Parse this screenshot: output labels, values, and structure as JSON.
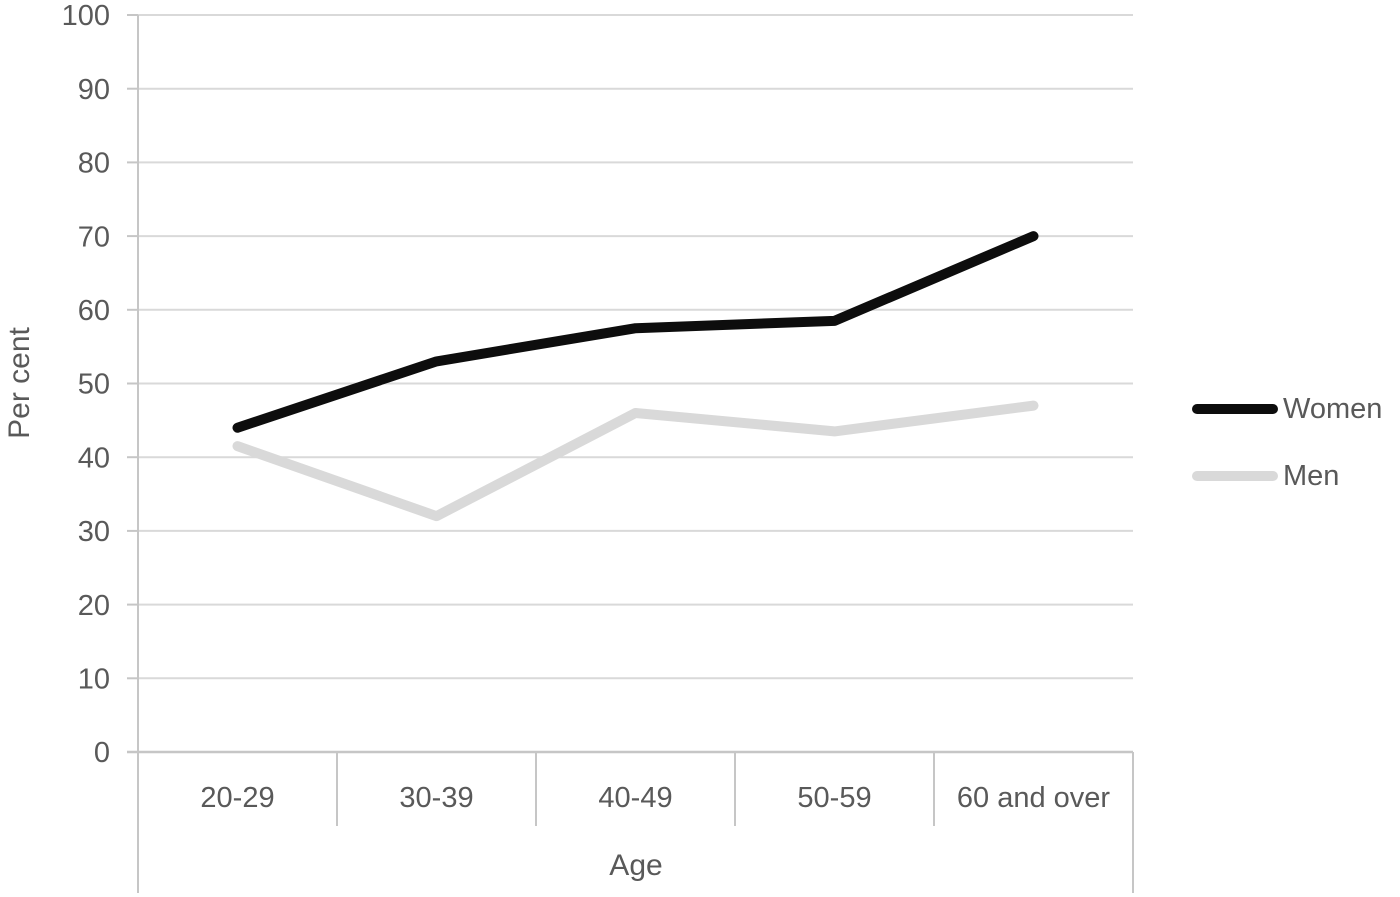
{
  "colors": {
    "background": "#ffffff",
    "text": "#595959",
    "gridline": "#d9d9d9",
    "axis_line": "#c6c6c6",
    "women_line": "#0d0d0d",
    "men_line": "#d9d9d9"
  },
  "chart_data": {
    "type": "line",
    "title": "",
    "xlabel": "Age",
    "ylabel": "Per cent",
    "categories": [
      "20-29",
      "30-39",
      "40-49",
      "50-59",
      "60 and over"
    ],
    "series": [
      {
        "name": "Women",
        "color": "#0d0d0d",
        "values": [
          44,
          53,
          57.5,
          58.5,
          70
        ]
      },
      {
        "name": "Men",
        "color": "#d9d9d9",
        "values": [
          41.5,
          32,
          46,
          43.5,
          47
        ]
      }
    ],
    "ylim": [
      0,
      100
    ],
    "y_tick_step": 10,
    "grid": true,
    "legend_position": "right",
    "line_width": 10
  }
}
